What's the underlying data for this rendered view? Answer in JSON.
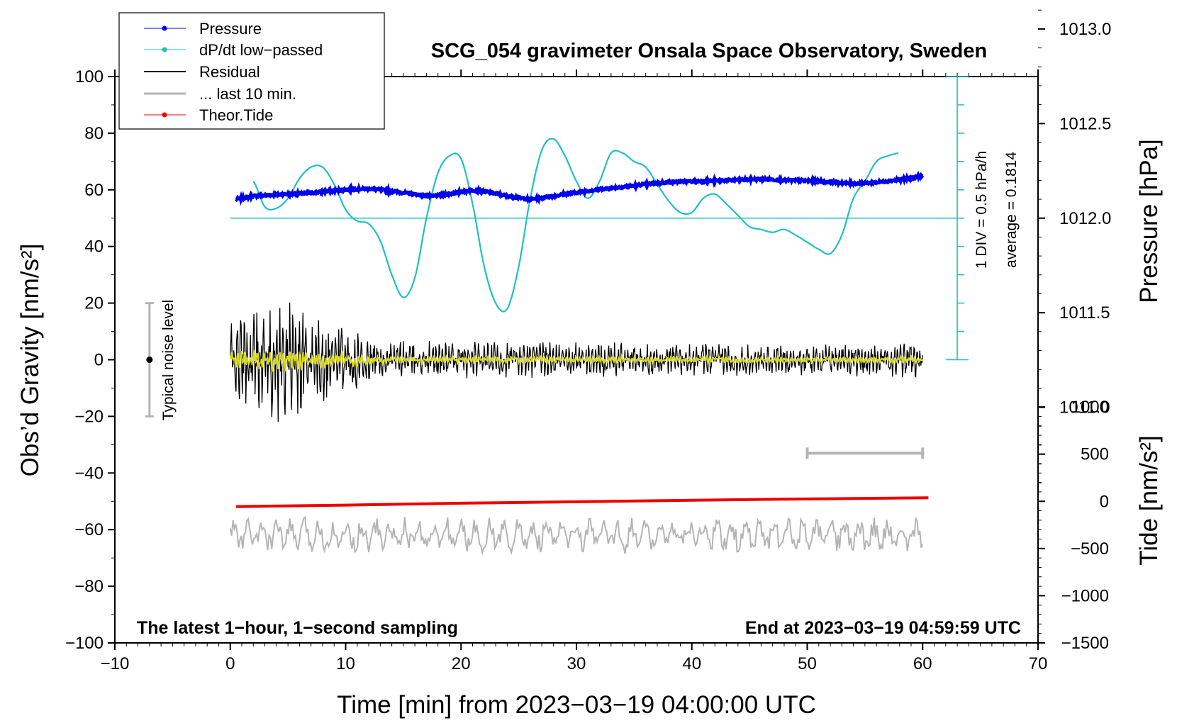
{
  "chart_data": {
    "type": "line",
    "title": "SCG_054 gravimeter Onsala Space Observatory, Sweden",
    "xlabel": "Time [min] from 2023−03−19 04:00:00 UTC",
    "ylabel_left": "Obs’d Gravity [nm/s²]",
    "ylabel_right_top": "Pressure [hPa]",
    "ylabel_right_bottom": "Tide [nm/s²]",
    "xlim": [
      -10,
      70
    ],
    "ylim": [
      -100,
      100
    ],
    "x_ticks": [
      "−10",
      "0",
      "10",
      "20",
      "30",
      "40",
      "50",
      "60",
      "70"
    ],
    "x_tick_values": [
      -10,
      0,
      10,
      20,
      30,
      40,
      50,
      60,
      70
    ],
    "y_ticks": [
      "100",
      "80",
      "60",
      "40",
      "20",
      "0",
      "−20",
      "−40",
      "−60",
      "−80",
      "−100"
    ],
    "y_tick_values": [
      100,
      80,
      60,
      40,
      20,
      0,
      -20,
      -40,
      -60,
      -80,
      -100
    ],
    "pressure_axis": {
      "ticks": [
        "1013.0",
        "1012.5",
        "1012.0",
        "1011.5",
        "1011.0"
      ],
      "tick_values": [
        1013.0,
        1012.5,
        1012.0,
        1011.5,
        1011.0
      ],
      "gravity_at_1012": 50,
      "gravity_per_hpa": 66.8
    },
    "tide_axis": {
      "ticks": [
        "1000",
        "500",
        "0",
        "−500",
        "−1000",
        "−1500"
      ],
      "tick_values": [
        1000,
        500,
        0,
        -500,
        -1000,
        -1500
      ],
      "gravity_at_zero": -50,
      "gravity_per_unit": 0.03333
    },
    "legend": [
      "Pressure",
      "dP/dt low−passed",
      "Residual",
      "... last 10 min.",
      "Theor.Tide"
    ],
    "dpdt_scale_text": "1 DIV = 0.5 hPa/h",
    "dpdt_average_text": "average = 0.1814",
    "dpdt_baseline": 50,
    "dpdt_bar": {
      "x": 63.0,
      "y_from": 0,
      "y_to": 100,
      "div": 10
    },
    "noise_label": "Typical noise level",
    "noise_bar": {
      "x": -7,
      "center": 0,
      "low": -20,
      "high": 20
    },
    "ten_min_bar": {
      "x_from": 50,
      "x_to": 60,
      "y": -33
    },
    "footer_left": "The latest 1−hour, 1−second sampling",
    "footer_right": "End at 2023−03−19 04:59:59 UTC",
    "colors": {
      "pressure": "#0000ee",
      "dpdt": "#20c0c0",
      "residual": "#000000",
      "filtered": "#d8d820",
      "last10": "#b4b4b4",
      "tide": "#ee0000"
    },
    "series": [
      {
        "name": "Pressure",
        "unit": "gravity-axis",
        "x": [
          0.5,
          2,
          4,
          6,
          8,
          10,
          12,
          14,
          16,
          17.5,
          19,
          21,
          22.5,
          24,
          26,
          28,
          30,
          32,
          34,
          36,
          38,
          40,
          42,
          44,
          46,
          48,
          50,
          52,
          54,
          56,
          58,
          60
        ],
        "y": [
          56.7,
          57.8,
          58.3,
          58.6,
          59.3,
          60.1,
          60.4,
          59.6,
          58.4,
          57.7,
          58.6,
          59.9,
          59.1,
          57.8,
          56.6,
          57.8,
          59.1,
          60.2,
          61.0,
          62.0,
          62.7,
          63.0,
          63.2,
          63.5,
          63.8,
          63.4,
          63.2,
          62.8,
          62.2,
          62.6,
          63.6,
          64.9
        ]
      },
      {
        "name": "dP/dt low−passed",
        "unit": "gravity-axis",
        "x": [
          2,
          3,
          4,
          5,
          6,
          7,
          8,
          9,
          10,
          11,
          12,
          13,
          14,
          15,
          16,
          17,
          18,
          19,
          20,
          21,
          22,
          23,
          24,
          25,
          26,
          27,
          28,
          29,
          30,
          31,
          32,
          33,
          34,
          35,
          36,
          37,
          38,
          39,
          40,
          41,
          42,
          43,
          44,
          45,
          46,
          47,
          48,
          49,
          50,
          51,
          52,
          53,
          54,
          55,
          56,
          57,
          58
        ],
        "y": [
          63,
          54,
          53.5,
          57,
          64,
          68,
          68,
          62,
          53,
          49,
          48,
          42,
          30,
          22,
          29,
          50,
          66,
          72,
          71,
          55,
          33,
          20,
          18,
          33,
          57,
          74,
          78,
          72,
          63,
          57,
          63,
          73,
          73,
          70,
          68,
          62,
          56,
          52,
          52,
          57,
          58.5,
          55,
          51,
          47,
          46,
          45,
          46,
          44,
          41.5,
          39,
          37.5,
          44,
          57,
          63,
          70,
          72,
          73
        ]
      },
      {
        "name": "Theor.Tide",
        "unit": "nm/s²",
        "x": [
          0.5,
          10,
          20,
          30,
          40,
          50,
          60.5
        ],
        "y": [
          -56,
          -40,
          -20,
          -5,
          12,
          25,
          38
        ]
      },
      {
        "name": "Residual",
        "unit": "nm/s²",
        "sampling_s": 1,
        "envelope_x": [
          0,
          2,
          4,
          6,
          8,
          10,
          12,
          14,
          20,
          30,
          40,
          50,
          60
        ],
        "envelope_amplitude": [
          13,
          16,
          19,
          17,
          13,
          11,
          8,
          6,
          5.5,
          5.5,
          5,
          5,
          5.5
        ]
      },
      {
        "name": "... last 10 min.",
        "unit": "gravity-axis",
        "x_range": [
          0,
          60
        ],
        "baseline": -62,
        "amplitude": 5.5
      }
    ]
  }
}
